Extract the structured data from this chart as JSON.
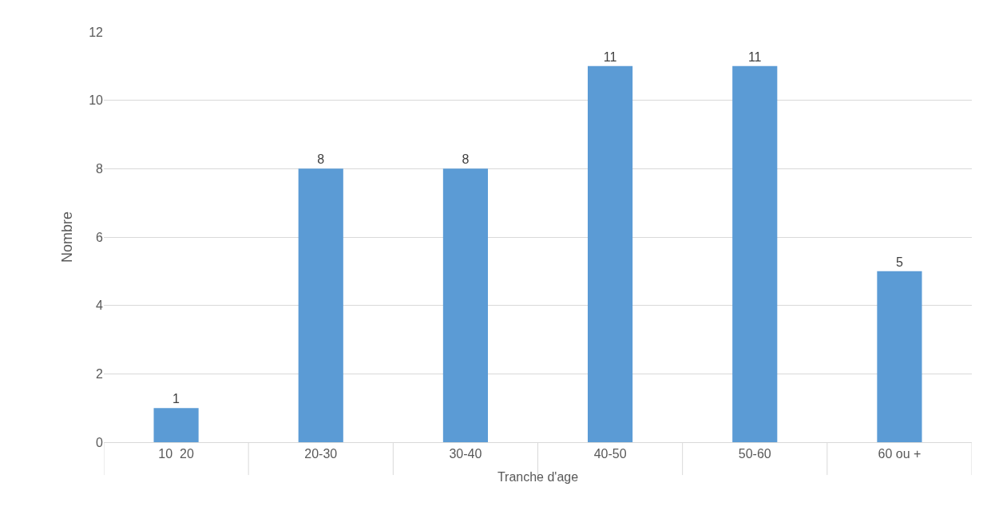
{
  "chart_data": {
    "type": "bar",
    "xlabel": "Tranche d'age",
    "ylabel": "Nombre",
    "categories": [
      "10  20",
      "20-30",
      "30-40",
      "40-50",
      "50-60",
      "60 ou +"
    ],
    "values": [
      1,
      8,
      8,
      11,
      11,
      5
    ],
    "color": "#5b9bd5",
    "data_labels": true,
    "ylim": [
      0,
      12
    ],
    "yticks": [
      0,
      2,
      4,
      6,
      8,
      10,
      12
    ],
    "grid": "y",
    "legend": false
  }
}
